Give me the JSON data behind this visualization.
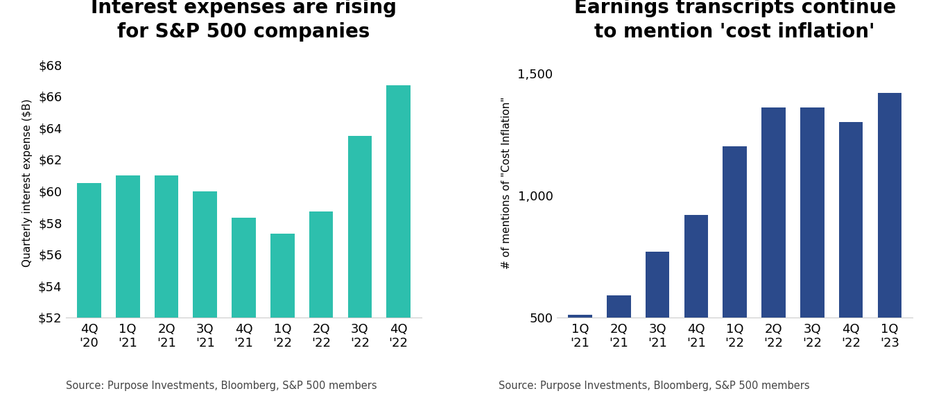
{
  "chart1": {
    "title": "Interest expenses are rising\nfor S&P 500 companies",
    "categories": [
      "4Q\n'20",
      "1Q\n'21",
      "2Q\n'21",
      "3Q\n'21",
      "4Q\n'21",
      "1Q\n'22",
      "2Q\n'22",
      "3Q\n'22",
      "4Q\n'22"
    ],
    "values": [
      60.5,
      61.0,
      61.0,
      60.0,
      58.3,
      57.3,
      58.7,
      63.5,
      66.7
    ],
    "bar_color": "#2dbfad",
    "ylabel": "Quarterly interest expense ($B)",
    "ylim": [
      52,
      69
    ],
    "yticks": [
      52,
      54,
      56,
      58,
      60,
      62,
      64,
      66,
      68
    ],
    "ytick_labels": [
      "$52",
      "$54",
      "$56",
      "$58",
      "$60",
      "$62",
      "$64",
      "$66",
      "$68"
    ],
    "source": "Source: Purpose Investments, Bloomberg, S&P 500 members"
  },
  "chart2": {
    "title": "Earnings transcripts continue\nto mention 'cost inflation'",
    "categories": [
      "1Q\n'21",
      "2Q\n'21",
      "3Q\n'21",
      "4Q\n'21",
      "1Q\n'22",
      "2Q\n'22",
      "3Q\n'22",
      "4Q\n'22",
      "1Q\n'23"
    ],
    "values": [
      510,
      590,
      770,
      920,
      1200,
      1360,
      1360,
      1300,
      1420
    ],
    "bar_color": "#2b4a8b",
    "ylabel": "# of mentions of \"Cost Inflation\"",
    "ylim": [
      500,
      1600
    ],
    "yticks": [
      500,
      1000,
      1500
    ],
    "ytick_labels": [
      "500",
      "1,000",
      "1,500"
    ],
    "source": "Source: Purpose Investments, Bloomberg, S&P 500 members"
  },
  "background_color": "#ffffff",
  "title_fontsize": 20,
  "label_fontsize": 11,
  "tick_fontsize": 13,
  "source_fontsize": 10.5
}
